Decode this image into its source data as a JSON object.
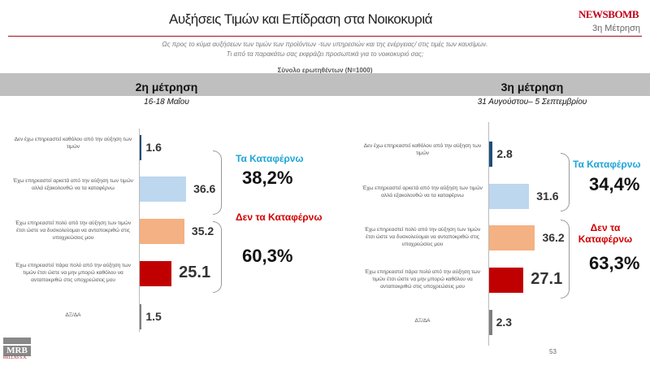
{
  "header": {
    "title": "Αυξήσεις Τιμών και Επίδραση στα Νοικοκυριά",
    "logo": "NEWSBOMB",
    "wave": "3η Μέτρηση"
  },
  "question": {
    "line1": "Ως προς το κύμα αυξήσεων των τιμών των προϊόντων -των υπηρεσιών και της ενέργειας/ στις τιμές των καυσίμων.",
    "line2": "Τι από τα παρακάτω σας εκφράζει προσωπικά για το νοικοκυριό σας;",
    "base": "Σύνολο ερωτηθέντων (N=1000)"
  },
  "colors": [
    "#1f4e79",
    "#bdd7ee",
    "#f4b183",
    "#c00000",
    "#7f7f7f"
  ],
  "chart_data": [
    {
      "type": "bar",
      "title": "2η μέτρηση",
      "subtitle": "16-18 Μαΐου",
      "categories": [
        "Δεν έχω επηρεαστεί καθόλου από την αύξηση των τιμών",
        "Έχω επηρεαστεί αρκετά από την αύξηση των τιμών αλλά εξακολουθώ να τα καταφέρνω",
        "Έχω επηρεαστεί πολύ από την αύξηση των τιμών έτσι ώστε να δυσκολεύομαι να ανταποκριθώ στις υποχρεώσεις μου",
        "Έχω επηρεαστεί πάρα πολύ από την αύξηση των τιμών έτσι ώστε να μην μπορώ καθόλου να ανταποκριθώ στις υποχρεώσεις μου",
        "ΔΞ/ΔΑ"
      ],
      "values": [
        1.6,
        36.6,
        35.2,
        25.1,
        1.5
      ],
      "labels": [
        "1.6",
        "36.6",
        "35.2",
        "25.1",
        "1.5"
      ],
      "groups": [
        {
          "label": "Τα Καταφέρνω",
          "value": "38,2%"
        },
        {
          "label": "Δεν τα Καταφέρνω",
          "value": "60,3%"
        }
      ]
    },
    {
      "type": "bar",
      "title": "3η μέτρηση",
      "subtitle": "31 Αυγούστου– 5 Σεπτεμβρίου",
      "categories": [
        "Δεν έχω επηρεαστεί καθόλου από την αύξηση των τιμών",
        "Έχω επηρεαστεί αρκετά από την αύξηση των τιμών αλλά εξακολουθώ να τα καταφέρνω",
        "Έχω επηρεαστεί πολύ από την αύξηση των τιμών έτσι ώστε να δυσκολεύομαι να ανταποκριθώ στις υποχρεώσεις μου",
        "Έχω επηρεαστεί πάρα πολύ από την αύξηση των τιμών έτσι ώστε να μην μπορώ καθόλου να ανταποκριθώ στις υποχρεώσεις μου",
        "ΔΞ/ΔΑ"
      ],
      "values": [
        2.8,
        31.6,
        36.2,
        27.1,
        2.3
      ],
      "labels": [
        "2.8",
        "31.6",
        "36.2",
        "27.1",
        "2.3"
      ],
      "groups": [
        {
          "label": "Τα Καταφέρνω",
          "value": "34,4%"
        },
        {
          "label": "Δεν τα Καταφέρνω",
          "value": "63,3%"
        }
      ]
    }
  ],
  "footer": {
    "logo": "MRB",
    "logo_sub": "HELLAS S.A.",
    "page": "53"
  }
}
